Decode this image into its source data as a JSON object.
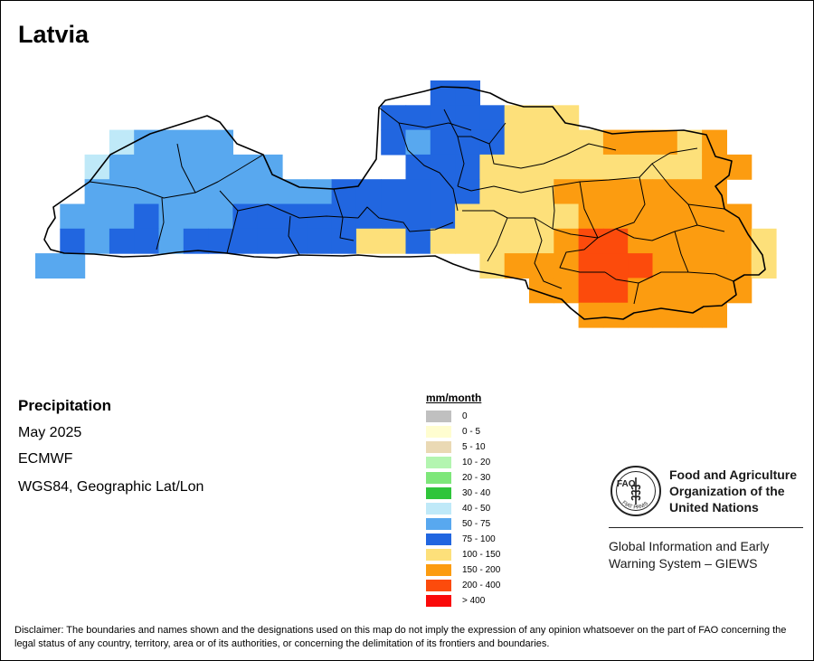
{
  "map": {
    "title": "Latvia",
    "variable": "Precipitation",
    "period": "May 2025",
    "source": "ECMWF",
    "projection": "WGS84, Geographic Lat/Lon"
  },
  "legend": {
    "unit": "mm/month",
    "classes": [
      {
        "label": "0",
        "color": "#c0c0c0"
      },
      {
        "label": "0 - 5",
        "color": "#fffdd0"
      },
      {
        "label": "5 - 10",
        "color": "#ead9b4"
      },
      {
        "label": "10 - 20",
        "color": "#b3f5b0"
      },
      {
        "label": "20 - 30",
        "color": "#7ee77a"
      },
      {
        "label": "30 - 40",
        "color": "#2fc53a"
      },
      {
        "label": "40 - 50",
        "color": "#bfe9f8"
      },
      {
        "label": "50 - 75",
        "color": "#58a8ef"
      },
      {
        "label": "75 - 100",
        "color": "#2166e0"
      },
      {
        "label": "100 - 150",
        "color": "#fde07a"
      },
      {
        "label": "150 - 200",
        "color": "#fc9c10"
      },
      {
        "label": "200 - 400",
        "color": "#fc4b0c"
      },
      {
        "label": "> 400",
        "color": "#fa0a0a"
      }
    ]
  },
  "org": {
    "name": "Food and Agriculture Organization of the United Nations",
    "logo_letters": "FAO",
    "logo_ring_text": "FIAT PANIS",
    "system": "Global Information and Early Warning System – GIEWS"
  },
  "disclaimer": "Disclaimer: The boundaries and names shown and the designations used on this map do not imply the expression of any opinion whatsoever on the part of FAO concerning the legal status of any country, territory, area or of its authorities, or concerning the delimitation of its frontiers and boundaries."
}
